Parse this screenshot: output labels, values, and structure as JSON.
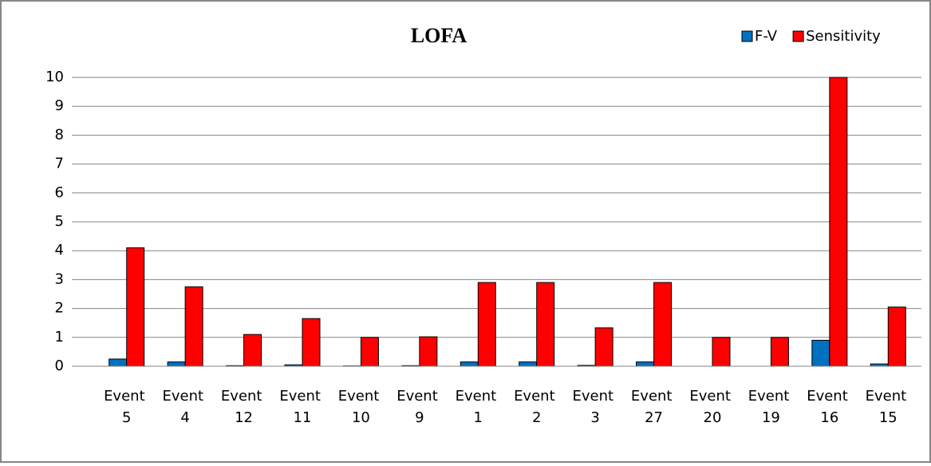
{
  "chart_data": {
    "type": "bar",
    "title": "LOFA",
    "categories": [
      "Event 5",
      "Event 4",
      "Event 12",
      "Event 11",
      "Event 10",
      "Event 9",
      "Event 1",
      "Event 2",
      "Event 3",
      "Event 27",
      "Event 20",
      "Event 19",
      "Event 16",
      "Event 15"
    ],
    "series": [
      {
        "name": "F-V",
        "color": "#0070c0",
        "values": [
          0.25,
          0.15,
          0.02,
          0.05,
          0.01,
          0.02,
          0.15,
          0.15,
          0.03,
          0.15,
          0,
          0,
          0.9,
          0.08
        ]
      },
      {
        "name": "Sensitivity",
        "color": "#ff0000",
        "values": [
          4.1,
          2.75,
          1.1,
          1.65,
          1.0,
          1.02,
          2.9,
          2.9,
          1.33,
          2.9,
          1.0,
          1.0,
          10,
          2.05
        ]
      }
    ],
    "ylim": [
      0,
      10
    ],
    "yticks": [
      0,
      1,
      2,
      3,
      4,
      5,
      6,
      7,
      8,
      9,
      10
    ],
    "grid": true,
    "legend": "top-right"
  }
}
